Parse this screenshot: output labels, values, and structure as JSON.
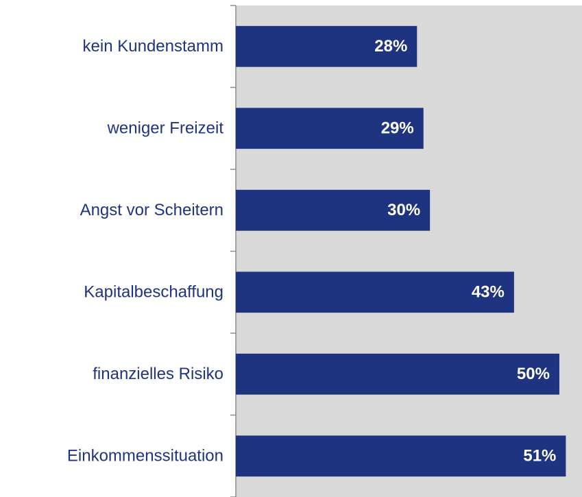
{
  "chart_data": {
    "type": "bar",
    "orientation": "horizontal",
    "categories": [
      "kein Kundenstamm",
      "weniger Freizeit",
      "Angst vor Scheitern",
      "Kapitalbeschaffung",
      "finanzielles Risiko",
      "Einkommenssituation"
    ],
    "values": [
      28,
      29,
      30,
      43,
      50,
      51
    ],
    "value_labels": [
      "28%",
      "29%",
      "30%",
      "43%",
      "50%",
      "51%"
    ],
    "color": "#1f3480",
    "xlim": [
      0,
      53.5
    ]
  }
}
